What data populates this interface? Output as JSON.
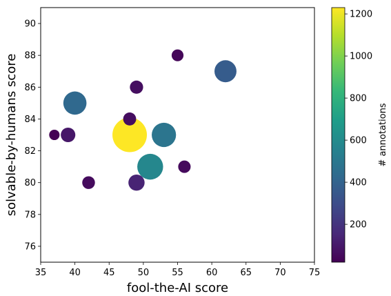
{
  "chart_data": {
    "type": "scatter",
    "title": "",
    "xlabel": "fool-the-AI score",
    "ylabel": "solvable-by-humans score",
    "xlim": [
      35,
      75
    ],
    "ylim": [
      75,
      91
    ],
    "xticks": [
      35,
      40,
      45,
      50,
      55,
      60,
      65,
      70,
      75
    ],
    "yticks": [
      76,
      78,
      80,
      82,
      84,
      86,
      88,
      90
    ],
    "grid": false,
    "size_and_color_encoding": "# annotations",
    "colorbar": {
      "label": "# annotations",
      "colormap": "viridis",
      "range": [
        20,
        1230
      ],
      "ticks": [
        200,
        400,
        600,
        800,
        1000,
        1200
      ]
    },
    "points": [
      {
        "x": 48,
        "y": 83,
        "annotations": 1230
      },
      {
        "x": 51,
        "y": 81,
        "annotations": 580
      },
      {
        "x": 53,
        "y": 83,
        "annotations": 490
      },
      {
        "x": 40,
        "y": 85,
        "annotations": 430
      },
      {
        "x": 62,
        "y": 87,
        "annotations": 370
      },
      {
        "x": 49,
        "y": 80,
        "annotations": 140
      },
      {
        "x": 39,
        "y": 83,
        "annotations": 95
      },
      {
        "x": 49,
        "y": 86,
        "annotations": 65
      },
      {
        "x": 48,
        "y": 84,
        "annotations": 60
      },
      {
        "x": 42,
        "y": 80,
        "annotations": 55
      },
      {
        "x": 56,
        "y": 81,
        "annotations": 50
      },
      {
        "x": 55,
        "y": 88,
        "annotations": 40
      },
      {
        "x": 37,
        "y": 83,
        "annotations": 20
      }
    ]
  }
}
